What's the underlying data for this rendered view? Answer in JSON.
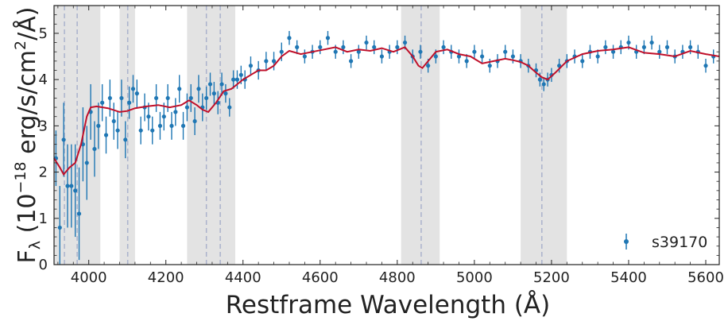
{
  "chart_data": {
    "type": "scatter",
    "title": "",
    "xlabel": "Restframe Wavelength (Å)",
    "ylabel_parts": {
      "f": "F",
      "lambda": "λ",
      "open": " (10",
      "exp": "−18",
      "mid": " erg/s/cm",
      "exp2": "2",
      "close": "/Å)"
    },
    "xlim": [
      3910,
      5635
    ],
    "ylim": [
      0,
      5.6
    ],
    "x_ticks": [
      4000,
      4200,
      4400,
      4600,
      4800,
      5000,
      5200,
      5400,
      5600
    ],
    "y_ticks": [
      0,
      1,
      2,
      3,
      4,
      5
    ],
    "grid": false,
    "legend": {
      "position": "bottom-right",
      "entries": [
        {
          "name": "s39170",
          "marker": "errorbar-point",
          "color": "#1f77b4"
        }
      ]
    },
    "colors": {
      "data": "#1f77b4",
      "model": "#c0102a",
      "band": "#e3e3e3",
      "line": "#aab2cc"
    },
    "shaded_bands": [
      [
        3910,
        4030
      ],
      [
        4080,
        4120
      ],
      [
        4255,
        4380
      ],
      [
        4810,
        4910
      ],
      [
        5120,
        5240
      ]
    ],
    "reference_lines": [
      3937,
      3970,
      4101,
      4305,
      4341,
      4862,
      5175
    ],
    "series": [
      {
        "name": "s39170",
        "kind": "errorbar",
        "x": [
          3915,
          3925,
          3935,
          3945,
          3955,
          3965,
          3975,
          3985,
          3995,
          4005,
          4015,
          4025,
          4035,
          4045,
          4055,
          4065,
          4075,
          4085,
          4095,
          4105,
          4115,
          4125,
          4135,
          4145,
          4155,
          4165,
          4175,
          4185,
          4195,
          4205,
          4215,
          4225,
          4235,
          4245,
          4255,
          4265,
          4275,
          4285,
          4295,
          4305,
          4315,
          4325,
          4335,
          4345,
          4355,
          4365,
          4375,
          4385,
          4395,
          4405,
          4420,
          4440,
          4460,
          4480,
          4500,
          4520,
          4540,
          4560,
          4580,
          4600,
          4620,
          4640,
          4660,
          4680,
          4700,
          4720,
          4740,
          4760,
          4780,
          4800,
          4820,
          4840,
          4860,
          4880,
          4900,
          4920,
          4940,
          4960,
          4980,
          5000,
          5020,
          5040,
          5060,
          5080,
          5100,
          5120,
          5140,
          5160,
          5170,
          5180,
          5190,
          5200,
          5220,
          5240,
          5260,
          5280,
          5300,
          5320,
          5340,
          5360,
          5380,
          5400,
          5420,
          5440,
          5460,
          5480,
          5500,
          5520,
          5540,
          5560,
          5580,
          5600,
          5620
        ],
        "y": [
          2.3,
          0.8,
          2.7,
          1.7,
          1.7,
          1.6,
          1.1,
          2.6,
          2.2,
          3.3,
          2.5,
          3.0,
          3.5,
          2.8,
          3.6,
          3.1,
          2.9,
          3.6,
          2.7,
          3.5,
          3.8,
          3.7,
          2.9,
          3.4,
          3.2,
          2.9,
          3.6,
          3.0,
          3.2,
          3.6,
          3.0,
          3.3,
          3.8,
          3.0,
          3.4,
          3.6,
          3.1,
          3.8,
          3.4,
          3.6,
          3.9,
          3.7,
          3.5,
          3.9,
          3.7,
          3.4,
          4.0,
          4.0,
          4.1,
          4.0,
          4.3,
          4.2,
          4.4,
          4.4,
          4.6,
          4.9,
          4.7,
          4.5,
          4.6,
          4.7,
          4.9,
          4.6,
          4.7,
          4.4,
          4.6,
          4.8,
          4.7,
          4.5,
          4.6,
          4.7,
          4.8,
          4.5,
          4.6,
          4.3,
          4.5,
          4.7,
          4.6,
          4.5,
          4.4,
          4.6,
          4.5,
          4.3,
          4.4,
          4.6,
          4.5,
          4.4,
          4.3,
          4.2,
          4.0,
          3.9,
          4.0,
          4.1,
          4.3,
          4.4,
          4.5,
          4.4,
          4.6,
          4.5,
          4.7,
          4.6,
          4.7,
          4.8,
          4.6,
          4.7,
          4.8,
          4.6,
          4.7,
          4.5,
          4.6,
          4.7,
          4.6,
          4.3,
          4.5
        ],
        "err": [
          0.6,
          0.9,
          0.8,
          0.9,
          0.9,
          1.0,
          1.0,
          0.8,
          0.8,
          0.6,
          0.6,
          0.5,
          0.4,
          0.4,
          0.4,
          0.4,
          0.4,
          0.4,
          0.4,
          0.35,
          0.3,
          0.3,
          0.3,
          0.3,
          0.3,
          0.3,
          0.3,
          0.3,
          0.3,
          0.3,
          0.3,
          0.3,
          0.3,
          0.3,
          0.3,
          0.3,
          0.3,
          0.3,
          0.3,
          0.25,
          0.25,
          0.25,
          0.25,
          0.25,
          0.2,
          0.2,
          0.2,
          0.2,
          0.2,
          0.2,
          0.2,
          0.2,
          0.2,
          0.2,
          0.2,
          0.15,
          0.15,
          0.15,
          0.15,
          0.15,
          0.15,
          0.15,
          0.15,
          0.15,
          0.15,
          0.15,
          0.15,
          0.15,
          0.15,
          0.15,
          0.15,
          0.15,
          0.15,
          0.15,
          0.15,
          0.15,
          0.15,
          0.15,
          0.15,
          0.15,
          0.15,
          0.15,
          0.15,
          0.15,
          0.15,
          0.15,
          0.15,
          0.15,
          0.15,
          0.15,
          0.15,
          0.15,
          0.15,
          0.15,
          0.15,
          0.15,
          0.15,
          0.15,
          0.15,
          0.15,
          0.15,
          0.15,
          0.15,
          0.15,
          0.15,
          0.15,
          0.15,
          0.15,
          0.15,
          0.15,
          0.15,
          0.15,
          0.15
        ]
      },
      {
        "name": "",
        "kind": "line",
        "x": [
          3910,
          3925,
          3935,
          3950,
          3965,
          3980,
          3995,
          4005,
          4020,
          4050,
          4080,
          4100,
          4120,
          4150,
          4180,
          4210,
          4240,
          4260,
          4280,
          4295,
          4310,
          4330,
          4350,
          4370,
          4385,
          4400,
          4420,
          4440,
          4460,
          4480,
          4500,
          4520,
          4550,
          4580,
          4610,
          4640,
          4670,
          4700,
          4730,
          4760,
          4790,
          4820,
          4840,
          4855,
          4865,
          4880,
          4900,
          4930,
          4960,
          4990,
          5020,
          5050,
          5080,
          5100,
          5120,
          5140,
          5160,
          5175,
          5190,
          5210,
          5240,
          5280,
          5320,
          5360,
          5400,
          5440,
          5480,
          5520,
          5560,
          5600,
          5635
        ],
        "y": [
          2.3,
          2.1,
          1.95,
          2.1,
          2.2,
          2.6,
          3.2,
          3.4,
          3.42,
          3.38,
          3.3,
          3.32,
          3.38,
          3.42,
          3.45,
          3.4,
          3.45,
          3.55,
          3.45,
          3.35,
          3.3,
          3.5,
          3.75,
          3.8,
          3.9,
          4.0,
          4.1,
          4.2,
          4.2,
          4.3,
          4.5,
          4.62,
          4.55,
          4.6,
          4.65,
          4.7,
          4.6,
          4.65,
          4.62,
          4.68,
          4.6,
          4.7,
          4.5,
          4.3,
          4.25,
          4.4,
          4.6,
          4.65,
          4.55,
          4.5,
          4.35,
          4.4,
          4.45,
          4.42,
          4.38,
          4.3,
          4.15,
          4.05,
          4.0,
          4.15,
          4.4,
          4.55,
          4.62,
          4.65,
          4.7,
          4.58,
          4.55,
          4.5,
          4.62,
          4.55,
          4.5
        ]
      }
    ]
  }
}
